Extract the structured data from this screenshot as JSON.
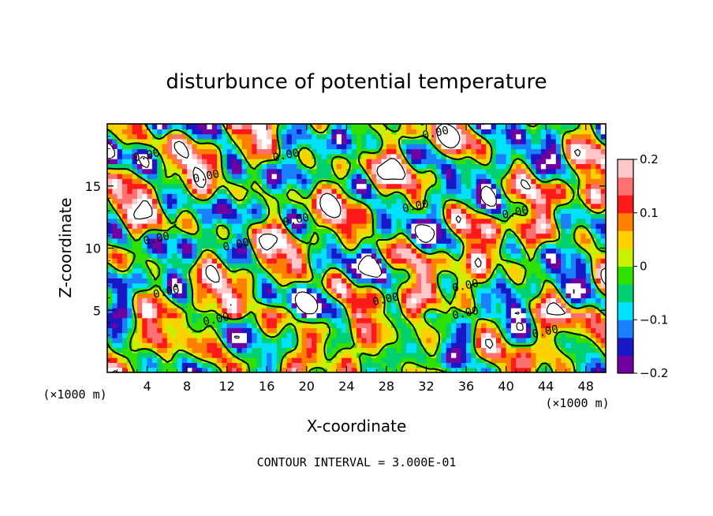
{
  "chart_data": {
    "type": "heatmap",
    "title": "disturbunce of potential temperature",
    "xlabel": "X-coordinate",
    "ylabel": "Z-coordinate",
    "x_unit": "(×1000 m)",
    "y_unit": "(×1000 m)",
    "xlim": [
      0,
      50
    ],
    "ylim": [
      0,
      20
    ],
    "x_ticks": [
      4,
      8,
      12,
      16,
      20,
      24,
      28,
      32,
      36,
      40,
      44,
      48
    ],
    "y_ticks": [
      5,
      10,
      15
    ],
    "colorbar": {
      "min": -0.2,
      "max": 0.2,
      "ticks": [
        0.2,
        0.1,
        0,
        -0.1,
        -0.2
      ],
      "tick_labels": [
        "0.2",
        "0.1",
        "0",
        "−0.1",
        "−0.2"
      ],
      "colors": [
        "#7000a0",
        "#1818c8",
        "#1a80ff",
        "#00e0ff",
        "#00d070",
        "#30e000",
        "#c8f000",
        "#ffd000",
        "#ff8000",
        "#ff1a1a",
        "#ff7070",
        "#ffc8c8"
      ]
    },
    "contour_labels": [
      {
        "text": "0.00",
        "x": 33,
        "z": 19.0
      },
      {
        "text": "0.00",
        "x": 18,
        "z": 17.2
      },
      {
        "text": "0.00",
        "x": 4,
        "z": 17.2
      },
      {
        "text": "0.00",
        "x": 10,
        "z": 15.5
      },
      {
        "text": "0.00",
        "x": 31,
        "z": 13.1
      },
      {
        "text": "0.00",
        "x": 41,
        "z": 12.6
      },
      {
        "text": "0.00",
        "x": 19,
        "z": 12.0
      },
      {
        "text": "0.00",
        "x": 5,
        "z": 10.5
      },
      {
        "text": "0.00",
        "x": 13,
        "z": 10.0
      },
      {
        "text": "0.00",
        "x": 36,
        "z": 6.7
      },
      {
        "text": "0.00",
        "x": 6,
        "z": 6.2
      },
      {
        "text": "0.00",
        "x": 28,
        "z": 5.6
      },
      {
        "text": "0.00",
        "x": 36,
        "z": 4.5
      },
      {
        "text": "0.00",
        "x": 11,
        "z": 4.0
      },
      {
        "text": "0.00",
        "x": 44,
        "z": 3.0
      }
    ],
    "contour_interval_text": "CONTOUR INTERVAL = 3.000E-01"
  }
}
